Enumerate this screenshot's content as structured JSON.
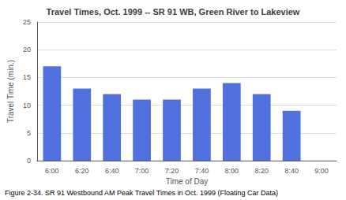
{
  "chart_data": {
    "type": "bar",
    "title": "Travel Times, Oct. 1999 -- SR 91 WB, Green River to Lakeview",
    "xlabel": "Time of Day",
    "ylabel": "Travel Time (min.)",
    "categories": [
      "6:00",
      "6:20",
      "6:40",
      "7:00",
      "7:20",
      "7:40",
      "8:00",
      "8:20",
      "8:40",
      "9:00"
    ],
    "values": [
      17,
      13,
      12,
      11,
      11,
      13,
      14,
      12,
      9,
      0
    ],
    "ylim": [
      0,
      25
    ],
    "yticks": [
      0,
      5,
      10,
      15,
      20,
      25
    ],
    "grid": true,
    "caption": "Figure 2-34. SR 91 Westbound AM Peak Travel Times in Oct. 1999 (Floating Car Data)"
  }
}
